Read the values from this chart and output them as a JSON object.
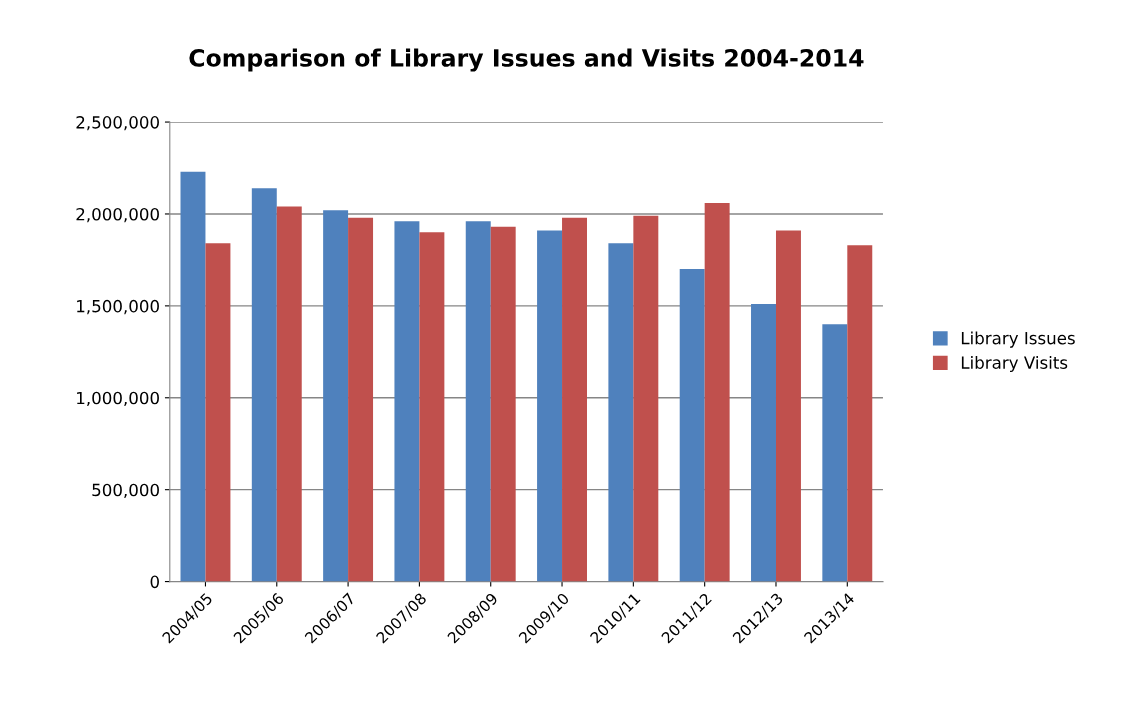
{
  "chart_data": {
    "type": "bar",
    "title": "Comparison of Library Issues and Visits 2004-2014",
    "categories": [
      "2004/05",
      "2005/06",
      "2006/07",
      "2007/08",
      "2008/09",
      "2009/10",
      "2010/11",
      "2011/12",
      "2012/13",
      "2013/14"
    ],
    "series": [
      {
        "name": "Library Issues",
        "color": "#4f81bd",
        "values": [
          2230000,
          2140000,
          2020000,
          1960000,
          1960000,
          1910000,
          1840000,
          1700000,
          1510000,
          1400000
        ]
      },
      {
        "name": "Library Visits",
        "color": "#c0504d",
        "values": [
          1840000,
          2040000,
          1980000,
          1900000,
          1930000,
          1980000,
          1990000,
          2060000,
          1910000,
          1830000
        ]
      }
    ],
    "ylim": [
      0,
      2500000
    ],
    "yticks": [
      {
        "value": 0,
        "label": "0"
      },
      {
        "value": 500000,
        "label": "500,000"
      },
      {
        "value": 1000000,
        "label": "1,000,000"
      },
      {
        "value": 1500000,
        "label": "1,500,000"
      },
      {
        "value": 2000000,
        "label": "2,000,000"
      },
      {
        "value": 2500000,
        "label": "2,500,000"
      }
    ],
    "grid": "y",
    "legend": "right"
  }
}
